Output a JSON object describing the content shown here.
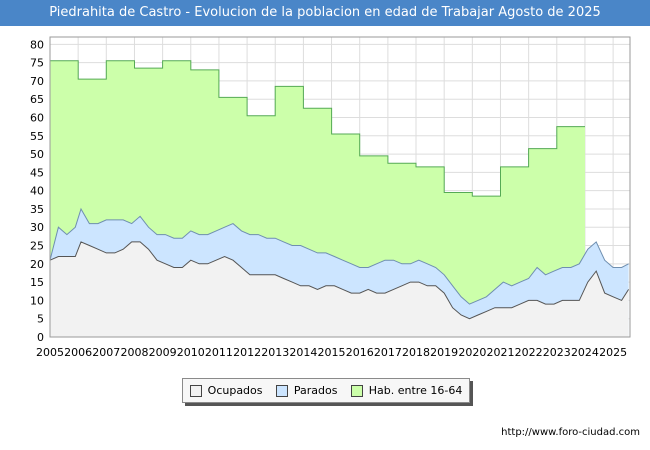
{
  "chart_data": {
    "type": "area",
    "title": "Piedrahita de Castro - Evolucion de la poblacion en edad de Trabajar Agosto de 2025",
    "xlabel": "",
    "ylabel": "",
    "ylim": [
      0,
      82
    ],
    "xlim": [
      2005,
      2025.6
    ],
    "yticks": [
      0,
      5,
      10,
      15,
      20,
      25,
      30,
      35,
      40,
      45,
      50,
      55,
      60,
      65,
      70,
      75,
      80
    ],
    "xticks": [
      2005,
      2006,
      2007,
      2008,
      2009,
      2010,
      2011,
      2012,
      2013,
      2014,
      2015,
      2016,
      2017,
      2018,
      2019,
      2020,
      2021,
      2022,
      2023,
      2024,
      2025
    ],
    "grid": true,
    "legend_position": "bottom-center",
    "series": [
      {
        "name": "Hab. entre 16-64",
        "color": "#ccffaa",
        "line_color": "#55aa55",
        "x": [
          2005,
          2006,
          2006,
          2007,
          2007,
          2008,
          2008,
          2009,
          2009,
          2010,
          2010,
          2011,
          2011,
          2012,
          2012,
          2013,
          2013,
          2014,
          2014,
          2015,
          2015,
          2016,
          2016,
          2017,
          2017,
          2018,
          2018,
          2019,
          2019,
          2020,
          2020,
          2021,
          2021,
          2022,
          2022,
          2023,
          2023,
          2024
        ],
        "values": [
          75.5,
          75.5,
          70.5,
          70.5,
          75.5,
          75.5,
          73.5,
          73.5,
          75.5,
          75.5,
          73,
          73,
          65.5,
          65.5,
          60.5,
          60.5,
          68.5,
          68.5,
          62.5,
          62.5,
          55.5,
          55.5,
          49.5,
          49.5,
          47.5,
          47.5,
          46.5,
          46.5,
          39.5,
          39.5,
          38.5,
          38.5,
          46.5,
          46.5,
          51.5,
          51.5,
          57.5,
          57.5
        ]
      },
      {
        "name": "Parados",
        "color": "#cce5ff",
        "line_color": "#6f8fb0",
        "x": [
          2005,
          2005.3,
          2005.6,
          2005.9,
          2006.1,
          2006.4,
          2006.7,
          2007.0,
          2007.3,
          2007.6,
          2007.9,
          2008.2,
          2008.5,
          2008.8,
          2009.1,
          2009.4,
          2009.7,
          2010.0,
          2010.3,
          2010.6,
          2010.9,
          2011.2,
          2011.5,
          2011.8,
          2012.1,
          2012.4,
          2012.7,
          2013.0,
          2013.3,
          2013.6,
          2013.9,
          2014.2,
          2014.5,
          2014.8,
          2015.1,
          2015.4,
          2015.7,
          2016.0,
          2016.3,
          2016.6,
          2016.9,
          2017.2,
          2017.5,
          2017.8,
          2018.1,
          2018.4,
          2018.7,
          2019.0,
          2019.3,
          2019.6,
          2019.9,
          2020.2,
          2020.5,
          2020.8,
          2021.1,
          2021.4,
          2021.7,
          2022.0,
          2022.3,
          2022.6,
          2022.9,
          2023.2,
          2023.5,
          2023.8,
          2024.1,
          2024.4,
          2024.7,
          2025.0,
          2025.3,
          2025.55
        ],
        "values": [
          21,
          30,
          28,
          30,
          35,
          31,
          31,
          32,
          32,
          32,
          31,
          33,
          30,
          28,
          28,
          27,
          27,
          29,
          28,
          28,
          29,
          30,
          31,
          29,
          28,
          28,
          27,
          27,
          26,
          25,
          25,
          24,
          23,
          23,
          22,
          21,
          20,
          19,
          19,
          20,
          21,
          21,
          20,
          20,
          21,
          20,
          19,
          17,
          14,
          11,
          9,
          10,
          11,
          13,
          15,
          14,
          15,
          16,
          19,
          17,
          18,
          19,
          19,
          20,
          24,
          26,
          21,
          19,
          19,
          20
        ]
      },
      {
        "name": "Ocupados",
        "color": "#f2f2f2",
        "line_color": "#555555",
        "x": [
          2005,
          2005.3,
          2005.6,
          2005.9,
          2006.1,
          2006.4,
          2006.7,
          2007.0,
          2007.3,
          2007.6,
          2007.9,
          2008.2,
          2008.5,
          2008.8,
          2009.1,
          2009.4,
          2009.7,
          2010.0,
          2010.3,
          2010.6,
          2010.9,
          2011.2,
          2011.5,
          2011.8,
          2012.1,
          2012.4,
          2012.7,
          2013.0,
          2013.3,
          2013.6,
          2013.9,
          2014.2,
          2014.5,
          2014.8,
          2015.1,
          2015.4,
          2015.7,
          2016.0,
          2016.3,
          2016.6,
          2016.9,
          2017.2,
          2017.5,
          2017.8,
          2018.1,
          2018.4,
          2018.7,
          2019.0,
          2019.3,
          2019.6,
          2019.9,
          2020.2,
          2020.5,
          2020.8,
          2021.1,
          2021.4,
          2021.7,
          2022.0,
          2022.3,
          2022.6,
          2022.9,
          2023.2,
          2023.5,
          2023.8,
          2024.1,
          2024.4,
          2024.7,
          2025.0,
          2025.3,
          2025.55
        ],
        "values": [
          21,
          22,
          22,
          22,
          26,
          25,
          24,
          23,
          23,
          24,
          26,
          26,
          24,
          21,
          20,
          19,
          19,
          21,
          20,
          20,
          21,
          22,
          21,
          19,
          17,
          17,
          17,
          17,
          16,
          15,
          14,
          14,
          13,
          14,
          14,
          13,
          12,
          12,
          13,
          12,
          12,
          13,
          14,
          15,
          15,
          14,
          14,
          12,
          8,
          6,
          5,
          6,
          7,
          8,
          8,
          8,
          9,
          10,
          10,
          9,
          9,
          10,
          10,
          10,
          15,
          18,
          12,
          11,
          10,
          13
        ]
      }
    ]
  },
  "legend": {
    "items": [
      "Ocupados",
      "Parados",
      "Hab. entre 16-64"
    ]
  },
  "footer": {
    "url": "http://www.foro-ciudad.com"
  }
}
